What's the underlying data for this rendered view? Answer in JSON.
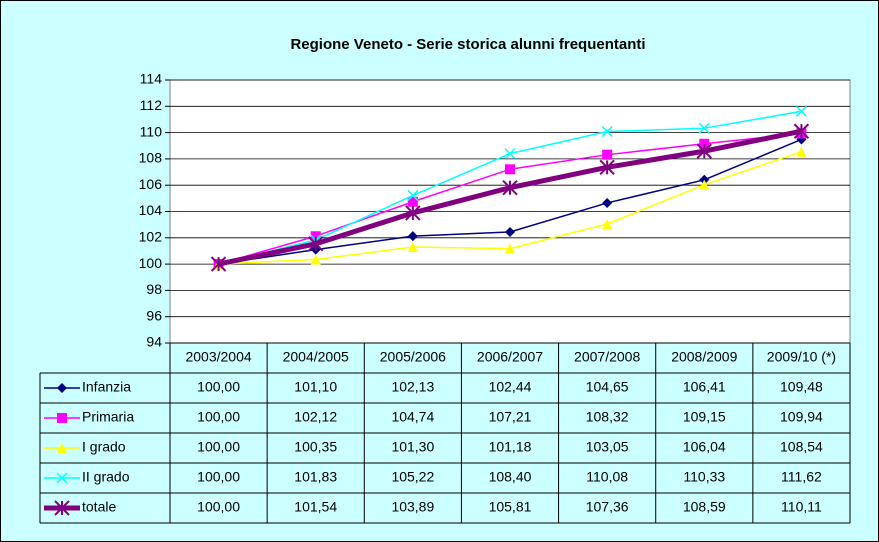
{
  "chart_data": {
    "type": "line",
    "title": "Regione Veneto - Serie storica alunni frequentanti",
    "categories": [
      "2003/2004",
      "2004/2005",
      "2005/2006",
      "2006/2007",
      "2007/2008",
      "2008/2009",
      "2009/10 (*)"
    ],
    "series": [
      {
        "name": "Infanzia",
        "color": "#000080",
        "marker": "diamond",
        "values": [
          100.0,
          101.1,
          102.13,
          102.44,
          104.65,
          106.41,
          109.48
        ],
        "value_labels": [
          "100,00",
          "101,10",
          "102,13",
          "102,44",
          "104,65",
          "106,41",
          "109,48"
        ]
      },
      {
        "name": "Primaria",
        "color": "#ff00ff",
        "marker": "square",
        "values": [
          100.0,
          102.12,
          104.74,
          107.21,
          108.32,
          109.15,
          109.94
        ],
        "value_labels": [
          "100,00",
          "102,12",
          "104,74",
          "107,21",
          "108,32",
          "109,15",
          "109,94"
        ]
      },
      {
        "name": "I grado",
        "color": "#ffff00",
        "marker": "triangle",
        "values": [
          100.0,
          100.35,
          101.3,
          101.18,
          103.05,
          106.04,
          108.54
        ],
        "value_labels": [
          "100,00",
          "100,35",
          "101,30",
          "101,18",
          "103,05",
          "106,04",
          "108,54"
        ]
      },
      {
        "name": "II grado",
        "color": "#00ffff",
        "marker": "x",
        "values": [
          100.0,
          101.83,
          105.22,
          108.4,
          110.08,
          110.33,
          111.62
        ],
        "value_labels": [
          "100,00",
          "101,83",
          "105,22",
          "108,40",
          "110,08",
          "110,33",
          "111,62"
        ]
      },
      {
        "name": "totale",
        "color": "#800080",
        "marker": "star",
        "width": 5,
        "values": [
          100.0,
          101.54,
          103.89,
          105.81,
          107.36,
          108.59,
          110.11
        ],
        "value_labels": [
          "100,00",
          "101,54",
          "103,89",
          "105,81",
          "107,36",
          "108,59",
          "110,11"
        ]
      }
    ],
    "ylim": [
      94,
      114
    ],
    "yticks": [
      94,
      96,
      98,
      100,
      102,
      104,
      106,
      108,
      110,
      112,
      114
    ],
    "grid": true
  }
}
